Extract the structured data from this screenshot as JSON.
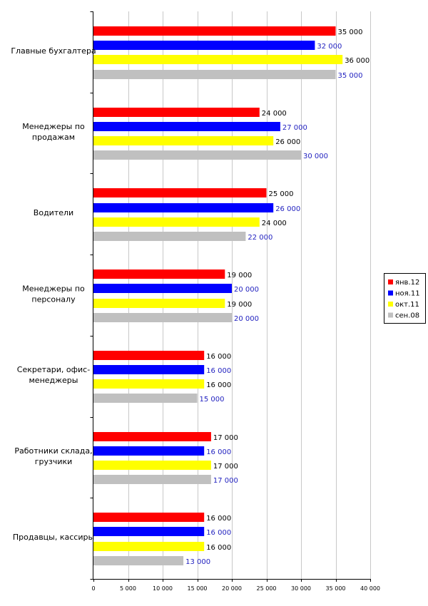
{
  "chart_data": {
    "type": "bar",
    "orientation": "horizontal",
    "categories": [
      "Главные бухгалтера",
      "Менеджеры по продажам",
      "Водители",
      "Менеджеры по персоналу",
      "Секретари, офис-менеджеры",
      "Работники склада, грузчики",
      "Продавцы, кассиры"
    ],
    "series": [
      {
        "name": "янв.12",
        "color": "#ff0000",
        "label_color": "#000000",
        "values": [
          35000,
          24000,
          25000,
          19000,
          16000,
          17000,
          16000
        ],
        "labels": [
          "35 000",
          "24 000",
          "25 000",
          "19 000",
          "16 000",
          "17 000",
          "16 000"
        ]
      },
      {
        "name": "ноя.11",
        "color": "#0000ff",
        "label_color": "#1f1fbf",
        "values": [
          32000,
          27000,
          26000,
          20000,
          16000,
          16000,
          16000
        ],
        "labels": [
          "32 000",
          "27 000",
          "26 000",
          "20 000",
          "16 000",
          "16 000",
          "16 000"
        ]
      },
      {
        "name": "окт.11",
        "color": "#ffff00",
        "label_color": "#000000",
        "values": [
          36000,
          26000,
          24000,
          19000,
          16000,
          17000,
          16000
        ],
        "labels": [
          "36 000",
          "26 000",
          "24 000",
          "19 000",
          "16 000",
          "17 000",
          "16 000"
        ]
      },
      {
        "name": "сен.08",
        "color": "#c0c0c0",
        "label_color": "#1f1fbf",
        "values": [
          35000,
          30000,
          22000,
          20000,
          15000,
          17000,
          13000
        ],
        "labels": [
          "35 000",
          "30 000",
          "22 000",
          "20 000",
          "15 000",
          "17 000",
          "13 000"
        ]
      }
    ],
    "xlim": [
      0,
      40000
    ],
    "xticks": [
      0,
      5000,
      10000,
      15000,
      20000,
      25000,
      30000,
      35000,
      40000
    ],
    "xtick_labels": [
      "0",
      "5 000",
      "10 000",
      "15 000",
      "20 000",
      "25 000",
      "30 000",
      "35 000",
      "40 000"
    ],
    "grid": "vertical",
    "legend": "right"
  }
}
